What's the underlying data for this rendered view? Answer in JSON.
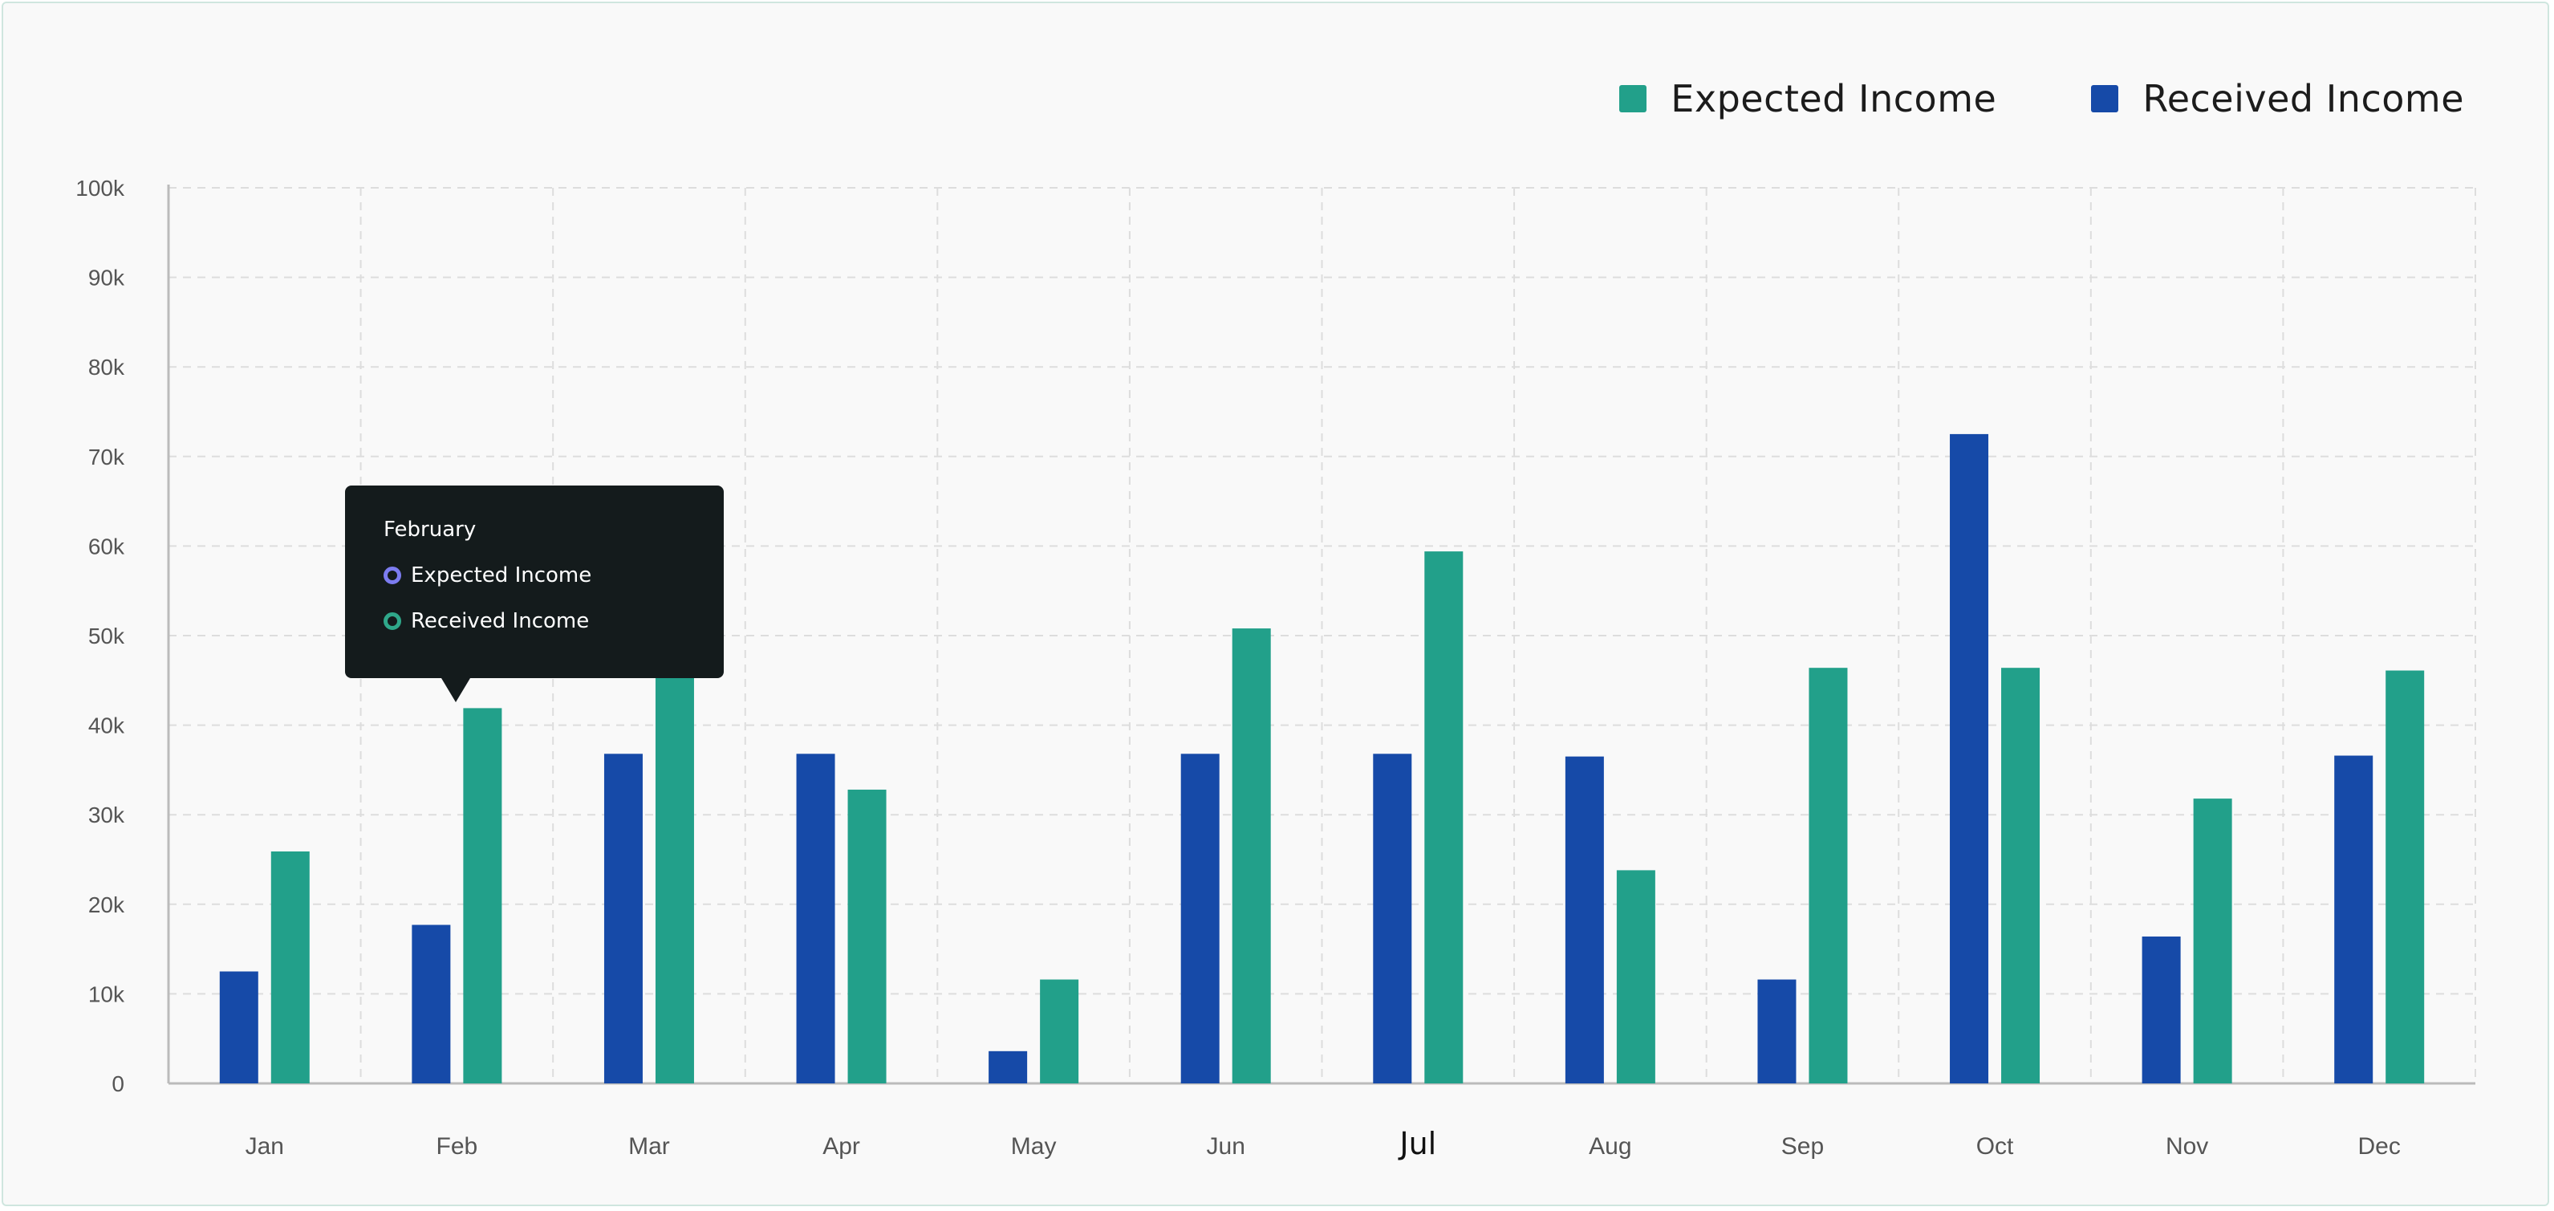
{
  "legend": {
    "expected_label": "Expected Income",
    "received_label": "Received Income"
  },
  "tooltip": {
    "title": "February",
    "rows": [
      {
        "label": "Expected Income",
        "color": "#7c7cf0"
      },
      {
        "label": "Received Income",
        "color": "#2fa88a"
      }
    ]
  },
  "colors": {
    "expected": "#22a08a",
    "received": "#164aa8",
    "grid": "#dddddd",
    "axis": "#bbbbbb",
    "tick_text": "#555555",
    "highlight_text": "#111111"
  },
  "chart_data": {
    "type": "bar",
    "categories": [
      "Jan",
      "Feb",
      "Mar",
      "Apr",
      "May",
      "Jun",
      "Jul",
      "Aug",
      "Sep",
      "Oct",
      "Nov",
      "Dec"
    ],
    "highlighted_category": "Jul",
    "series": [
      {
        "name": "Received Income",
        "values": [
          12500,
          17700,
          36800,
          36800,
          3600,
          36800,
          36800,
          36500,
          11600,
          72500,
          16400,
          36600
        ]
      },
      {
        "name": "Expected Income",
        "values": [
          25900,
          41900,
          45600,
          32800,
          11600,
          50800,
          59400,
          23800,
          46400,
          46400,
          31800,
          46100
        ]
      }
    ],
    "y_ticks": [
      "0",
      "10k",
      "20k",
      "30k",
      "40k",
      "50k",
      "60k",
      "70k",
      "80k",
      "90k",
      "100k"
    ],
    "ylim": [
      0,
      100000
    ],
    "grid": true,
    "legend_position": "top-right"
  }
}
